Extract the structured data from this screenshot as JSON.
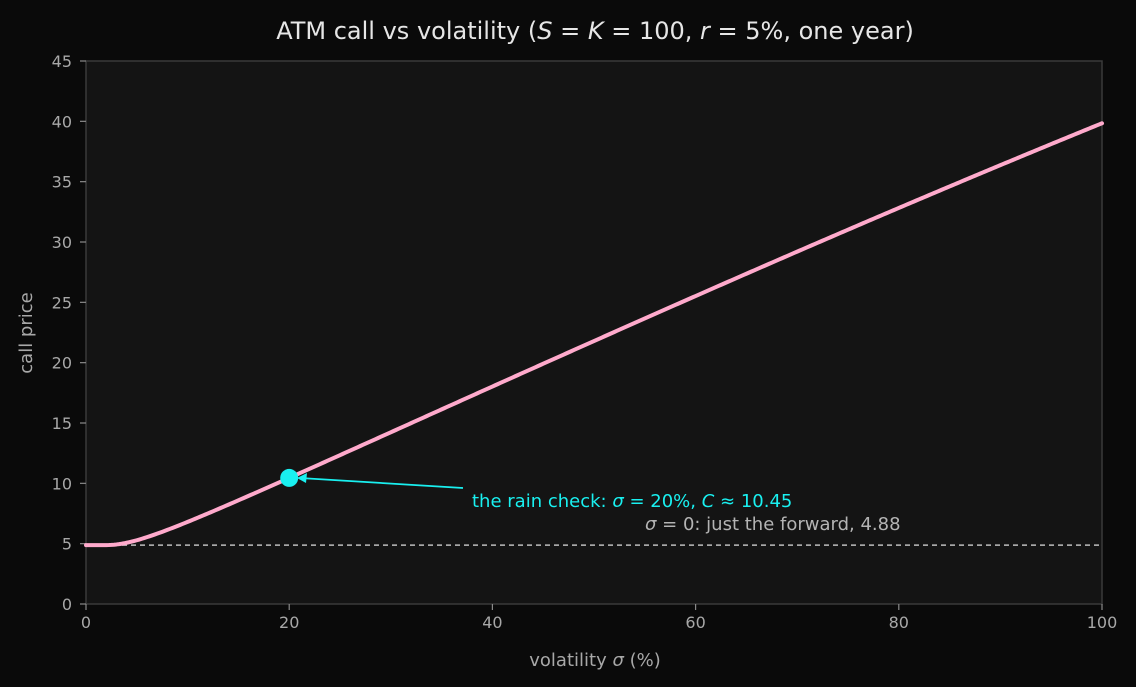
{
  "chart_data": {
    "type": "line",
    "title": "ATM call vs volatility  (S = K = 100, r = 5%, one year)",
    "title_parts": {
      "prefix": "ATM call vs volatility  (",
      "S": "S",
      "eq1": " = ",
      "K": "K",
      "eq2": " = 100, ",
      "r": "r",
      "eq3": " = 5%, one year)"
    },
    "xlabel": "volatility σ (%)",
    "xlabel_parts": {
      "pre": "volatility ",
      "sym": "σ",
      "post": " (%)"
    },
    "ylabel": "call price",
    "xlim": [
      0,
      100
    ],
    "ylim": [
      0,
      45
    ],
    "xticks": [
      0,
      20,
      40,
      60,
      80,
      100
    ],
    "yticks": [
      0,
      5,
      10,
      15,
      20,
      25,
      30,
      35,
      40,
      45
    ],
    "grid": false,
    "model": {
      "S": 100,
      "K": 100,
      "r": 0.05,
      "T": 1
    },
    "series": [
      {
        "color": "#ffaacc",
        "x": [
          0,
          2,
          4,
          6,
          8,
          10,
          15,
          20,
          25,
          30,
          40,
          50,
          60,
          70,
          80,
          90,
          100
        ],
        "y": [
          4.88,
          4.91,
          5.16,
          5.61,
          6.18,
          6.81,
          8.59,
          10.45,
          12.34,
          14.23,
          18.02,
          21.79,
          25.53,
          29.23,
          32.86,
          36.42,
          39.89
        ]
      }
    ],
    "highlight_point": {
      "x": 20,
      "y": 10.45,
      "color": "#19f0f0"
    },
    "reference_line": {
      "y": 4.88,
      "style": "dashed",
      "color": "#bdbdbd"
    },
    "annotations": [
      {
        "text": "the rain check: σ = 20%, C ≈ 10.45",
        "parts": {
          "a": "the rain check: ",
          "s1": "σ",
          "b": " = 20%, ",
          "s2": "C",
          "c": " ≈ 10.45"
        },
        "color": "#19f0f0"
      },
      {
        "text": "σ = 0: just the forward, 4.88",
        "parts": {
          "s1": "σ",
          "a": " = 0: just the forward, 4.88"
        },
        "color": "#b4b4b4"
      }
    ]
  }
}
